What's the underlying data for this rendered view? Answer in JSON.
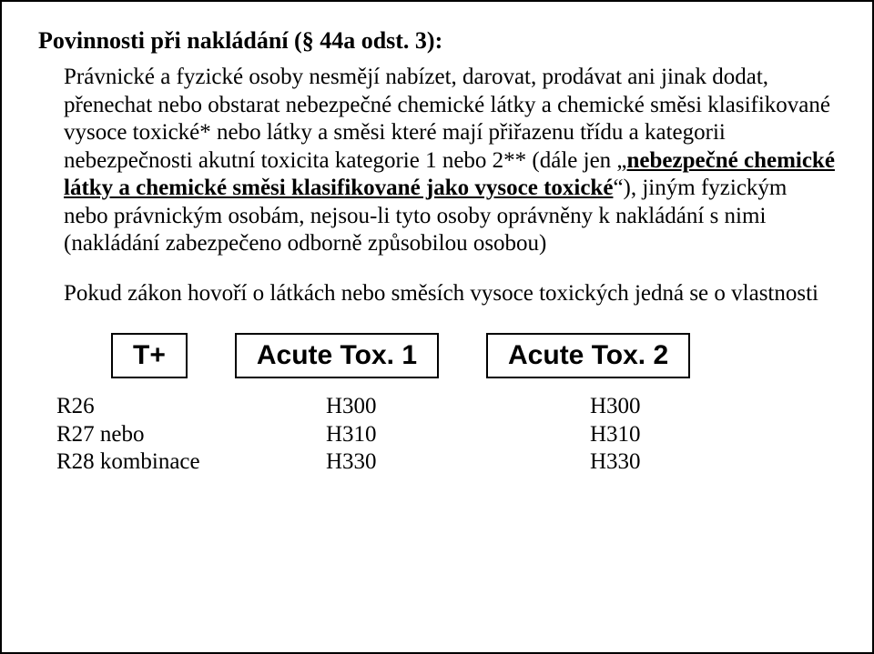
{
  "title": "Povinnosti při nakládání (§ 44a odst. 3):",
  "para1_pre": "Právnické a fyzické osoby nesmějí nabízet, darovat, prodávat ani jinak dodat, přenechat nebo obstarat nebezpečné chemické látky a chemické směsi klasifikované vysoce toxické* nebo látky a směsi které mají přiřazenu třídu a kategorii nebezpečnosti akutní toxicita kategorie 1 nebo 2** (dále jen „",
  "para1_bold_underlined": "nebezpečné chemické látky a chemické směsi klasifikované jako vysoce toxické",
  "para1_post": "“), jiným fyzickým nebo právnickým osobám, nejsou-li tyto osoby oprávněny k nakládání s nimi (nakládání zabezpečeno odborně způsobilou osobou)",
  "para2": "Pokud zákon hovoří o látkách nebo směsích vysoce toxických jedná se o vlastnosti",
  "boxes": {
    "left": "T+",
    "mid": "Acute Tox. 1",
    "right": "Acute Tox. 2"
  },
  "codes": {
    "left": {
      "l1": "R26",
      "l2": "R27  nebo",
      "l3": "R28  kombinace"
    },
    "mid": {
      "l1": "H300",
      "l2": "H310",
      "l3": "H330"
    },
    "right": {
      "l1": "H300",
      "l2": "H310",
      "l3": "H330"
    }
  }
}
